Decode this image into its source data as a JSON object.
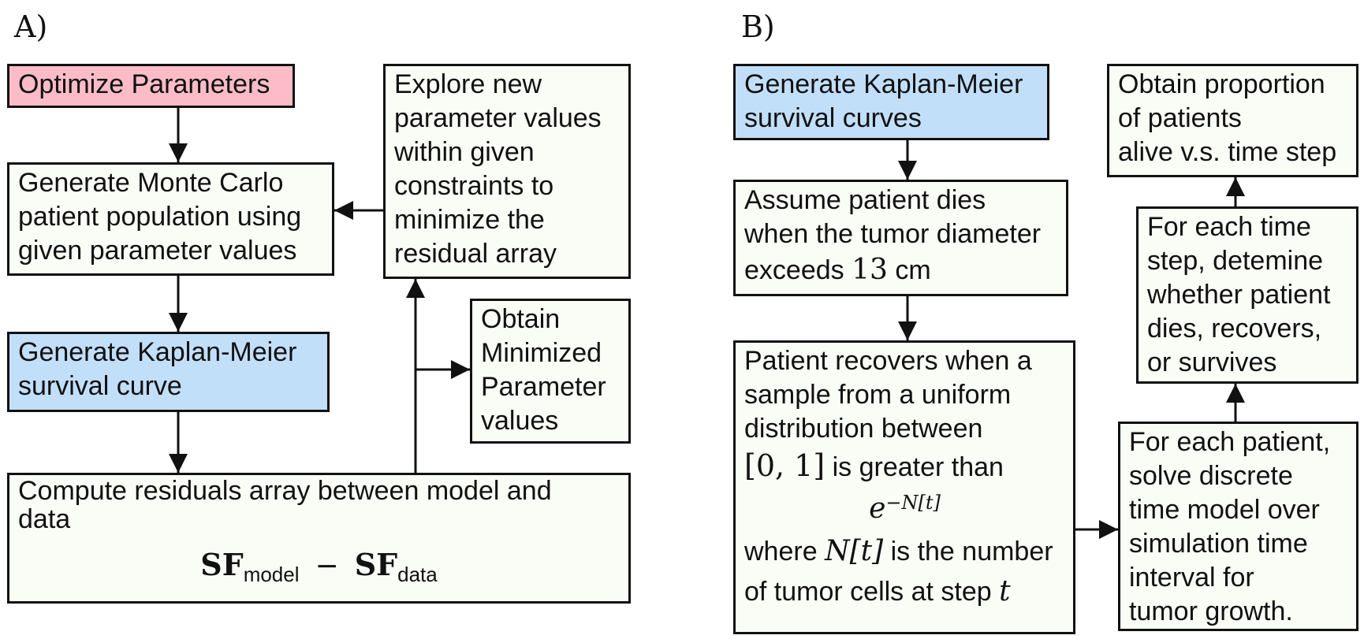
{
  "panel_a": {
    "label": "A)",
    "optimize": "Optimize Parameters",
    "monte_carlo": [
      "Generate Monte Carlo",
      "patient population using",
      "given parameter values"
    ],
    "km_curve": [
      "Generate Kaplan-Meier",
      "survival curve"
    ],
    "residuals": [
      "Compute residuals array between model and",
      "data"
    ],
    "formula": {
      "sf": "SF",
      "model_sub": "model",
      "minus": "−",
      "data_sub": "data"
    },
    "explore": [
      "Explore new",
      "parameter values",
      "within given",
      "constraints to",
      "minimize the",
      "residual array"
    ],
    "obtain_min": [
      "Obtain",
      "Minimized",
      "Parameter",
      "values"
    ]
  },
  "panel_b": {
    "label": "B)",
    "km_curves": [
      "Generate Kaplan-Meier",
      "survival curves"
    ],
    "assume": {
      "line1": "Assume patient dies",
      "line2": "when the tumor diameter",
      "line3_pre": "exceeds ",
      "line3_num": "13",
      "line3_post": " cm"
    },
    "recovers": {
      "line1": "Patient recovers when a",
      "line2": "sample from a uniform",
      "line3": "distribution between",
      "interval": "[0, 1]",
      "line4_post": " is greater than",
      "exp_base": "e",
      "exp_sup": "−N[t]",
      "line5_pre": "where ",
      "line5_math": "N[t]",
      "line5_post": " is the number",
      "line6_pre": "of tumor cells at step ",
      "line6_math": "t"
    },
    "each_patient": [
      "For each patient,",
      "solve discrete",
      "time model over",
      "simulation time",
      "interval for",
      "tumor growth."
    ],
    "each_step": [
      "For each time",
      "step, detemine",
      "whether patient",
      "dies, recovers,",
      "or survives"
    ],
    "proportion": [
      "Obtain proportion",
      "of patients",
      "alive v.s. time step"
    ]
  },
  "colors": {
    "pink": "#fbbcc7",
    "blue": "#c2dffa",
    "box_fill": "#fafcf6",
    "stroke": "#111111"
  }
}
